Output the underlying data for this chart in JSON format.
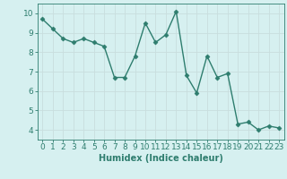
{
  "x": [
    0,
    1,
    2,
    3,
    4,
    5,
    6,
    7,
    8,
    9,
    10,
    11,
    12,
    13,
    14,
    15,
    16,
    17,
    18,
    19,
    20,
    21,
    22,
    23
  ],
  "y": [
    9.7,
    9.2,
    8.7,
    8.5,
    8.7,
    8.5,
    8.3,
    6.7,
    6.7,
    7.8,
    9.5,
    8.5,
    8.9,
    10.1,
    6.8,
    5.9,
    7.8,
    6.7,
    6.9,
    4.3,
    4.4,
    4.0,
    4.2,
    4.1
  ],
  "line_color": "#2e7d6e",
  "bg_color": "#d6f0f0",
  "grid_color": "#c8dede",
  "xlabel": "Humidex (Indice chaleur)",
  "ylim": [
    3.5,
    10.5
  ],
  "xlim": [
    -0.5,
    23.5
  ],
  "yticks": [
    4,
    5,
    6,
    7,
    8,
    9,
    10
  ],
  "xticks": [
    0,
    1,
    2,
    3,
    4,
    5,
    6,
    7,
    8,
    9,
    10,
    11,
    12,
    13,
    14,
    15,
    16,
    17,
    18,
    19,
    20,
    21,
    22,
    23
  ],
  "xlabel_fontsize": 7,
  "tick_fontsize": 6.5,
  "marker_size": 2.5,
  "line_width": 1.0
}
